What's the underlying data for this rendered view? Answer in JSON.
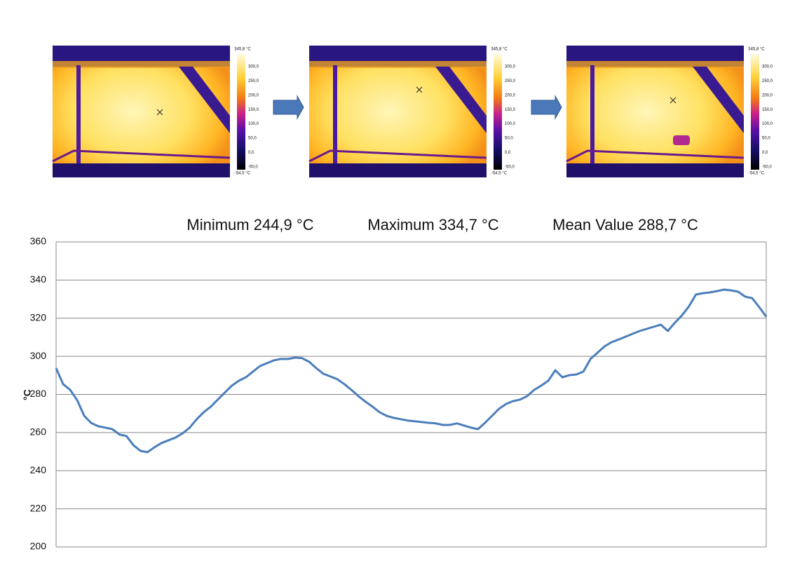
{
  "chart_data": {
    "type": "line",
    "ylabel": "°C",
    "annotations": [
      "Minimum 244,9 °C",
      "Maximum 334,7 °C",
      "Mean Value 288,7 °C"
    ],
    "series": [
      {
        "color": "#4a7ebb",
        "values": [
          293.8,
          285.4,
          282.4,
          277,
          268.8,
          265,
          263.3,
          262.6,
          261.8,
          259,
          258.2,
          253.4,
          250.4,
          249.7,
          252.3,
          254.5,
          256,
          257.4,
          259.6,
          262.6,
          267,
          270.7,
          273.6,
          277.3,
          281,
          284.6,
          287.2,
          289,
          292,
          294.9,
          296.4,
          297.9,
          298.6,
          298.6,
          299.3,
          299,
          297.1,
          293.8,
          290.9,
          289.4,
          288,
          285.4,
          282.4,
          279.1,
          276.2,
          273.6,
          270.7,
          268.8,
          267.7,
          267,
          266.3,
          265.9,
          265.5,
          265.1,
          264.8,
          264,
          264,
          264.8,
          263.7,
          262.6,
          261.8,
          265.1,
          268.8,
          272.5,
          275,
          276.5,
          277.3,
          279.1,
          282.4,
          284.6,
          287.2,
          292.7,
          289,
          290.1,
          290.5,
          292,
          298.6,
          301.9,
          305.2,
          307.4,
          308.8,
          310.3,
          311.8,
          313.3,
          314.4,
          315.5,
          316.6,
          313.3,
          317.6,
          321.4,
          326.2,
          332.4,
          333.1,
          333.5,
          334.2,
          335,
          334.6,
          333.9,
          331.3,
          330.5,
          325.8,
          320.7
        ]
      }
    ],
    "ylim": [
      200,
      360
    ],
    "yticks": [
      200,
      220,
      240,
      260,
      280,
      300,
      320,
      340,
      360
    ],
    "grid": true
  },
  "thermal_images": [
    {
      "scale_max": "345,8 °C",
      "scale_labels": [
        "300,0",
        "250,0",
        "200,0",
        "150,0",
        "100,0",
        "50,0",
        "0,0",
        "-50,0"
      ],
      "scale_min": "-54,5 °C"
    },
    {
      "scale_max": "345,8 °C",
      "scale_labels": [
        "300,0",
        "250,0",
        "200,0",
        "150,0",
        "100,0",
        "50,0",
        "0,0",
        "-50,0"
      ],
      "scale_min": "-54,5 °C"
    },
    {
      "scale_max": "345,8 °C",
      "scale_labels": [
        "300,0",
        "250,0",
        "200,0",
        "150,0",
        "100,0",
        "50,0",
        "0,0",
        "-50,0"
      ],
      "scale_min": "-54,5 °C"
    }
  ]
}
